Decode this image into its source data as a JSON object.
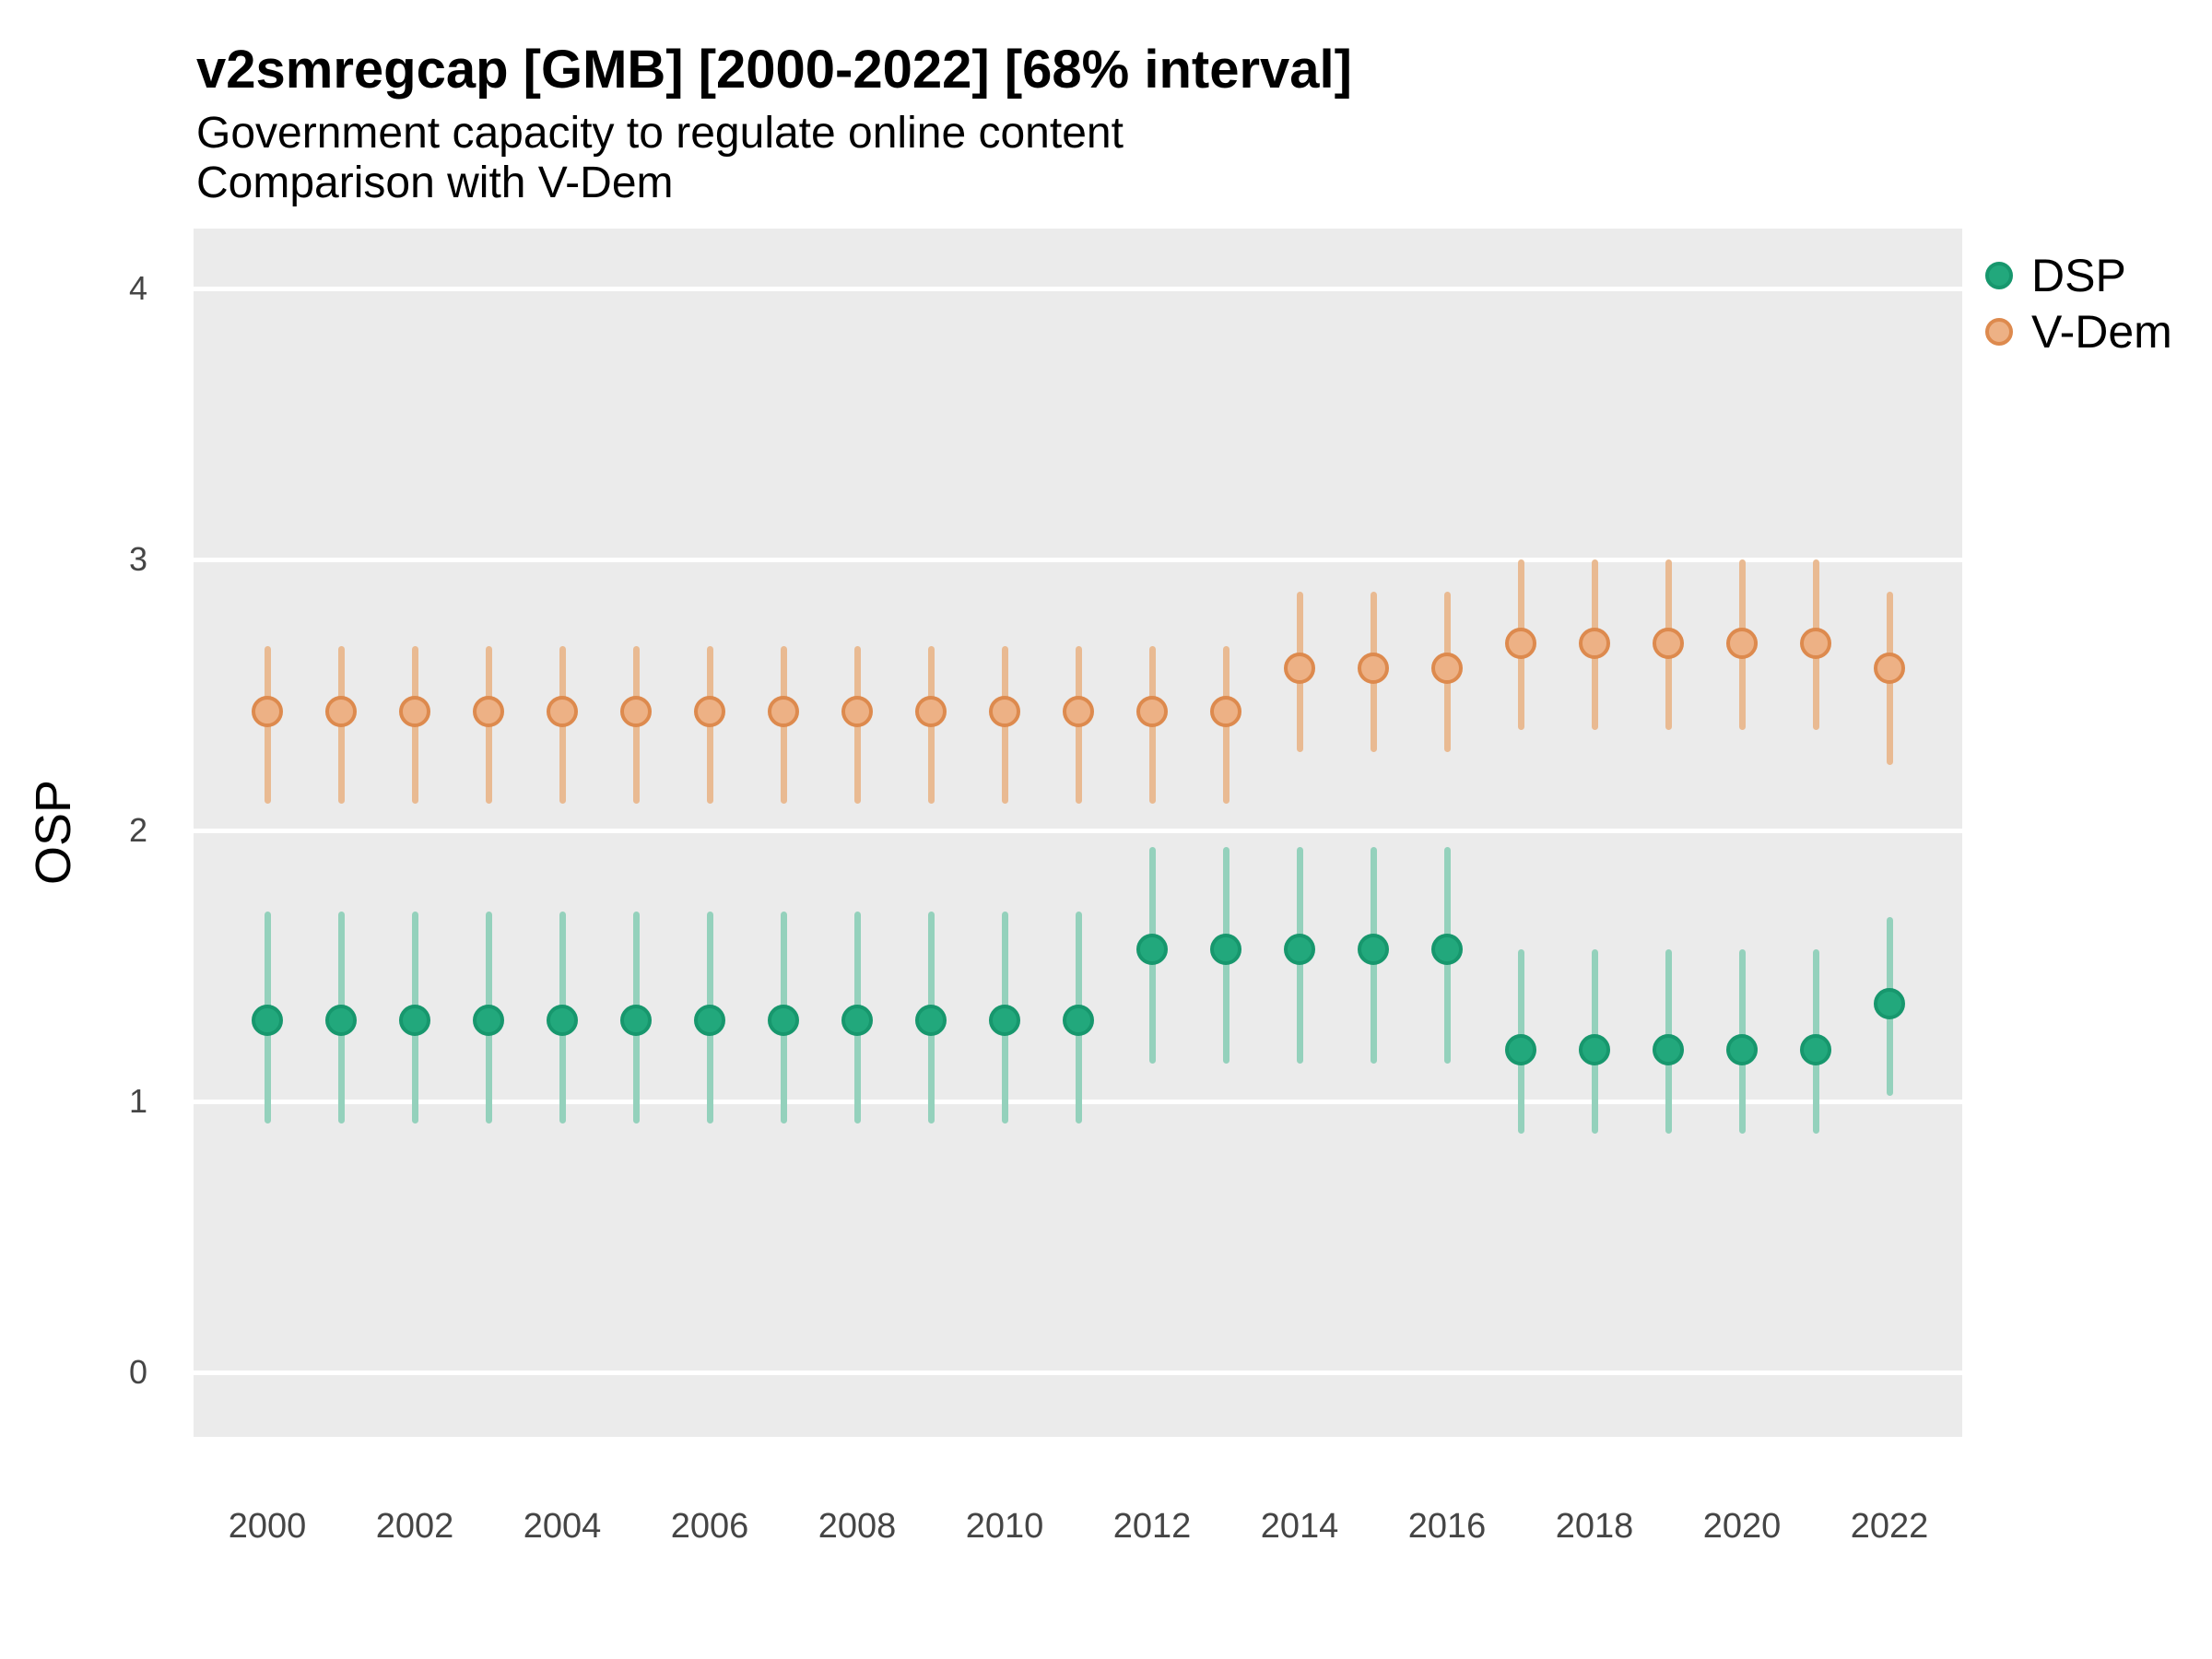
{
  "header": {
    "title": "v2smregcap [GMB] [2000-2022] [68% interval]",
    "subtitle_line1": "Government capacity to regulate online content",
    "subtitle_line2": "Comparison with V-Dem"
  },
  "axes": {
    "y_title": "OSP",
    "y_ticks": [
      0,
      1,
      2,
      3,
      4
    ],
    "x_tick_labels": [
      "2000",
      "2002",
      "2004",
      "2006",
      "2008",
      "2010",
      "2012",
      "2014",
      "2016",
      "2018",
      "2020",
      "2022"
    ]
  },
  "colors": {
    "panel_background": "#EBEBEB",
    "gridline": "#FFFFFF",
    "axis_text": "#454545",
    "text": "#000000"
  },
  "chart_data": {
    "type": "scatter",
    "subtype": "pointrange",
    "title": "v2smregcap [GMB] [2000-2022] [68% interval]",
    "subtitle": "Government capacity to regulate online content — Comparison with V-Dem",
    "xlabel": "",
    "ylabel": "OSP",
    "ylim": [
      -0.24,
      4.22
    ],
    "y_ticks": [
      0,
      1,
      2,
      3,
      4
    ],
    "x": [
      2000,
      2001,
      2002,
      2003,
      2004,
      2005,
      2006,
      2007,
      2008,
      2009,
      2010,
      2011,
      2012,
      2013,
      2014,
      2015,
      2016,
      2017,
      2018,
      2019,
      2020,
      2021,
      2022
    ],
    "interval": "68%",
    "grid": "major-horizontal-white-on-gray",
    "legend_position": "right",
    "series": [
      {
        "name": "DSP",
        "point_fill": "#22A87C",
        "point_border": "#17976D",
        "bar_color": "#94D1BC",
        "estimates": [
          1.3,
          1.3,
          1.3,
          1.3,
          1.3,
          1.3,
          1.3,
          1.3,
          1.3,
          1.3,
          1.3,
          1.3,
          1.56,
          1.56,
          1.56,
          1.56,
          1.56,
          1.19,
          1.19,
          1.19,
          1.19,
          1.19,
          1.36
        ],
        "lower_68": [
          0.92,
          0.92,
          0.92,
          0.92,
          0.92,
          0.92,
          0.92,
          0.92,
          0.92,
          0.92,
          0.92,
          0.92,
          1.14,
          1.14,
          1.14,
          1.14,
          1.14,
          0.88,
          0.88,
          0.88,
          0.88,
          0.88,
          1.02
        ],
        "upper_68": [
          1.7,
          1.7,
          1.7,
          1.7,
          1.7,
          1.7,
          1.7,
          1.7,
          1.7,
          1.7,
          1.7,
          1.7,
          1.94,
          1.94,
          1.94,
          1.94,
          1.94,
          1.56,
          1.56,
          1.56,
          1.56,
          1.56,
          1.68
        ]
      },
      {
        "name": "V-Dem",
        "point_fill": "#EDB185",
        "point_border": "#DD8A4E",
        "bar_color": "#E9BA92",
        "estimates": [
          2.44,
          2.44,
          2.44,
          2.44,
          2.44,
          2.44,
          2.44,
          2.44,
          2.44,
          2.44,
          2.44,
          2.44,
          2.44,
          2.44,
          2.6,
          2.6,
          2.6,
          2.69,
          2.69,
          2.69,
          2.69,
          2.69,
          2.6
        ],
        "lower_68": [
          2.1,
          2.1,
          2.1,
          2.1,
          2.1,
          2.1,
          2.1,
          2.1,
          2.1,
          2.1,
          2.1,
          2.1,
          2.1,
          2.1,
          2.29,
          2.29,
          2.29,
          2.37,
          2.37,
          2.37,
          2.37,
          2.37,
          2.24
        ],
        "upper_68": [
          2.68,
          2.68,
          2.68,
          2.68,
          2.68,
          2.68,
          2.68,
          2.68,
          2.68,
          2.68,
          2.68,
          2.68,
          2.68,
          2.68,
          2.88,
          2.88,
          2.88,
          3.0,
          3.0,
          3.0,
          3.0,
          3.0,
          2.88
        ]
      }
    ]
  }
}
